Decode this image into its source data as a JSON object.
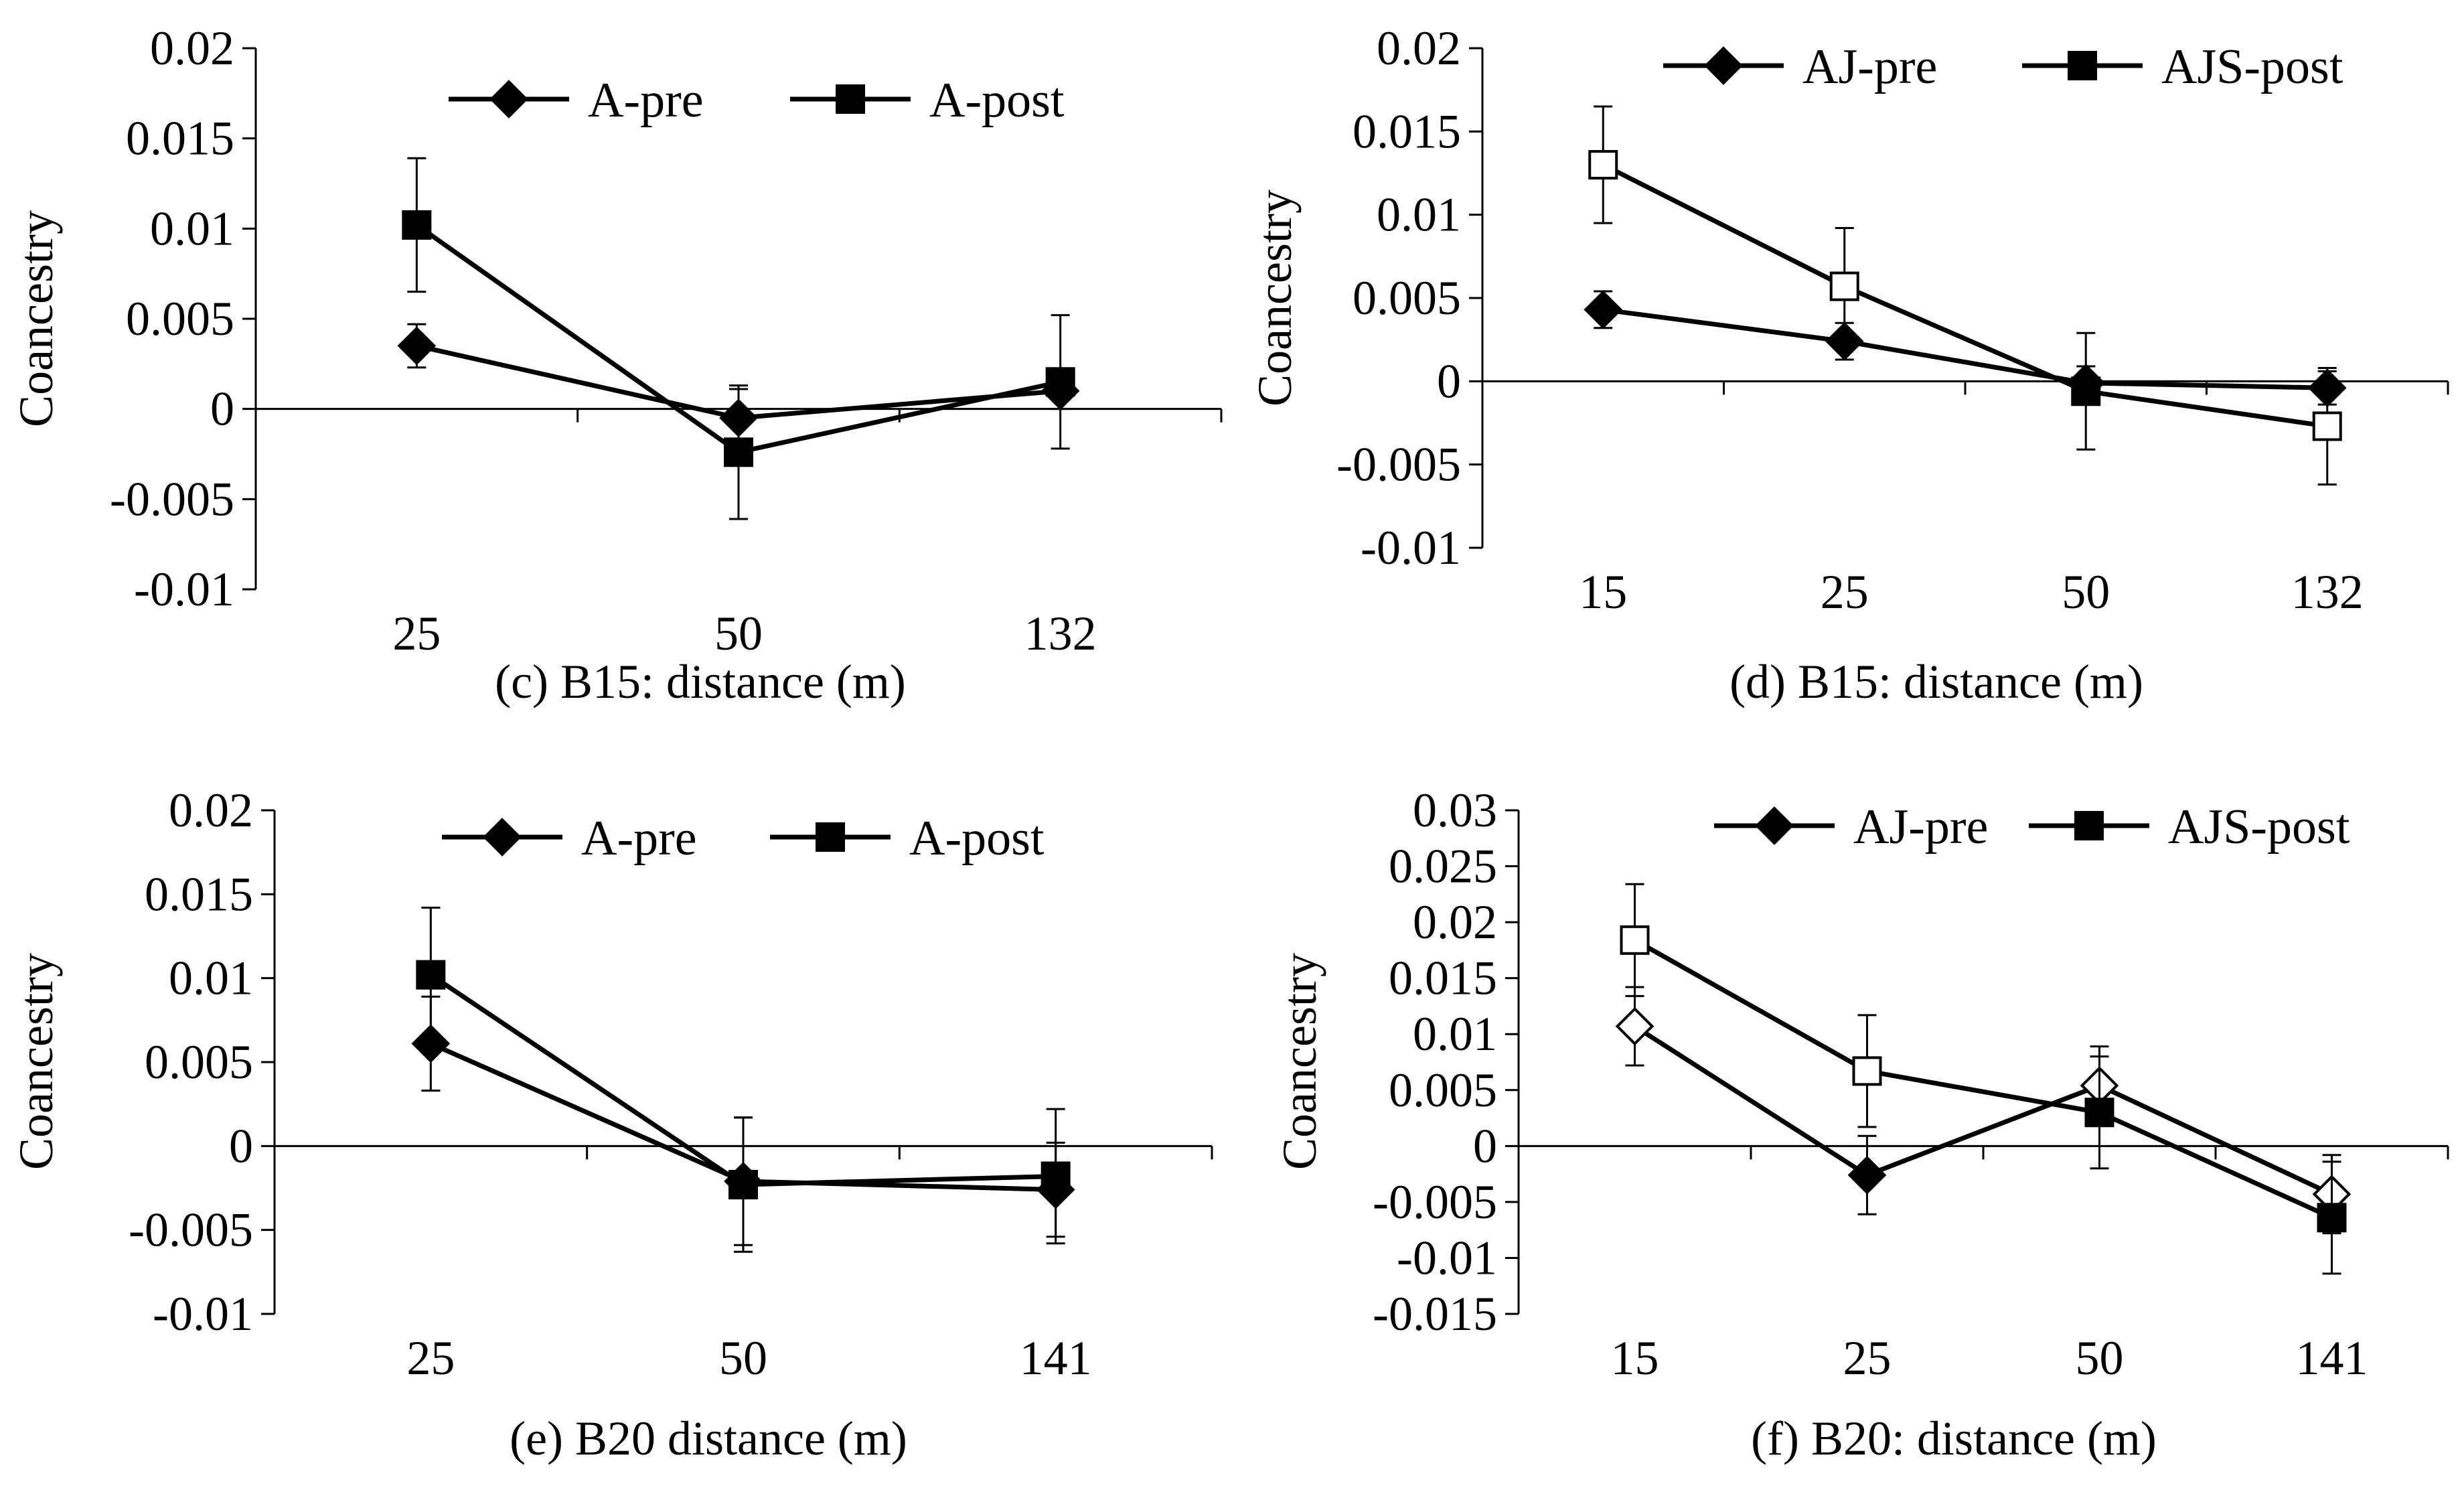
{
  "figure": {
    "background": "#ffffff",
    "line_color": "#000000"
  },
  "chart_data": [
    {
      "type": "line",
      "caption": "(c) B15: distance (m)",
      "ylabel": "Coancestry",
      "categories": [
        "25",
        "50",
        "132"
      ],
      "ylim": [
        -0.01,
        0.02
      ],
      "yticks": [
        -0.01,
        -0.005,
        0,
        0.005,
        0.01,
        0.015,
        0.02
      ],
      "ytick_labels": [
        "-0.01",
        "-0.005",
        "0",
        "0.005",
        "0.01",
        "0.015",
        "0.02"
      ],
      "legend_position": "top-center",
      "series": [
        {
          "name": "A-pre",
          "marker": "diamond",
          "values": [
            0.0035,
            -0.0005,
            0.001
          ],
          "error": [
            0.0012,
            0.0016,
            0.001
          ],
          "fills": [
            "black",
            "black",
            "black"
          ]
        },
        {
          "name": "A-post",
          "marker": "square",
          "values": [
            0.0102,
            -0.0024,
            0.0015
          ],
          "error": [
            0.0037,
            0.0037,
            0.0037
          ],
          "fills": [
            "black",
            "black",
            "black"
          ]
        }
      ]
    },
    {
      "type": "line",
      "caption": "(d) B15: distance (m)",
      "ylabel": "Coancestry",
      "categories": [
        "15",
        "25",
        "50",
        "132"
      ],
      "ylim": [
        -0.01,
        0.02
      ],
      "yticks": [
        -0.01,
        -0.005,
        0,
        0.005,
        0.01,
        0.015,
        0.02
      ],
      "ytick_labels": [
        "-0.01",
        "-0.005",
        "0",
        "0.005",
        "0.01",
        "0.015",
        "0.02"
      ],
      "legend_position": "top-center",
      "series": [
        {
          "name": "AJ-pre",
          "marker": "diamond",
          "values": [
            0.0043,
            0.0024,
            -0.0001,
            -0.0004
          ],
          "error": [
            0.0011,
            0.0011,
            0.001,
            0.001
          ],
          "fills": [
            "black",
            "black",
            "black",
            "black"
          ]
        },
        {
          "name": "AJS-post",
          "marker": "square",
          "values": [
            0.013,
            0.0057,
            -0.0006,
            -0.0027
          ],
          "error": [
            0.0035,
            0.0035,
            0.0035,
            0.0035
          ],
          "fills": [
            "white",
            "white",
            "black",
            "white"
          ]
        }
      ]
    },
    {
      "type": "line",
      "caption": "(e) B20 distance (m)",
      "ylabel": "Coancestry",
      "categories": [
        "25",
        "50",
        "141"
      ],
      "ylim": [
        -0.01,
        0.02
      ],
      "yticks": [
        -0.01,
        -0.005,
        0,
        0.005,
        0.01,
        0.015,
        0.02
      ],
      "ytick_labels": [
        "-0.01",
        "-0.005",
        "0",
        "0.005",
        "0.01",
        "0.015",
        "0.02"
      ],
      "legend_position": "top-center",
      "series": [
        {
          "name": "A-pre",
          "marker": "diamond",
          "values": [
            0.0061,
            -0.0021,
            -0.0026
          ],
          "error": [
            0.0028,
            0.0038,
            0.0028
          ],
          "fills": [
            "black",
            "black",
            "black"
          ]
        },
        {
          "name": "A-post",
          "marker": "square",
          "values": [
            0.0102,
            -0.0023,
            -0.0018
          ],
          "error": [
            0.004,
            0.004,
            0.004
          ],
          "fills": [
            "black",
            "black",
            "black"
          ]
        }
      ]
    },
    {
      "type": "line",
      "caption": "(f) B20: distance (m)",
      "ylabel": "Coancestry",
      "categories": [
        "15",
        "25",
        "50",
        "141"
      ],
      "ylim": [
        -0.015,
        0.03
      ],
      "yticks": [
        -0.015,
        -0.01,
        -0.005,
        0,
        0.005,
        0.01,
        0.015,
        0.02,
        0.025,
        0.03
      ],
      "ytick_labels": [
        "-0.015",
        "-0.01",
        "-0.005",
        "0",
        "0.005",
        "0.01",
        "0.015",
        "0.02",
        "0.025",
        "0.03"
      ],
      "legend_position": "top-center",
      "series": [
        {
          "name": "AJ-pre",
          "marker": "diamond",
          "values": [
            0.0107,
            -0.0026,
            0.0054,
            -0.0043
          ],
          "error": [
            0.0035,
            0.0035,
            0.0035,
            0.0035
          ],
          "fills": [
            "white",
            "black",
            "white",
            "white"
          ]
        },
        {
          "name": "AJS-post",
          "marker": "square",
          "values": [
            0.0184,
            0.0067,
            0.003,
            -0.0064
          ],
          "error": [
            0.005,
            0.005,
            0.005,
            0.005
          ],
          "fills": [
            "white",
            "white",
            "black",
            "black"
          ]
        }
      ]
    }
  ]
}
